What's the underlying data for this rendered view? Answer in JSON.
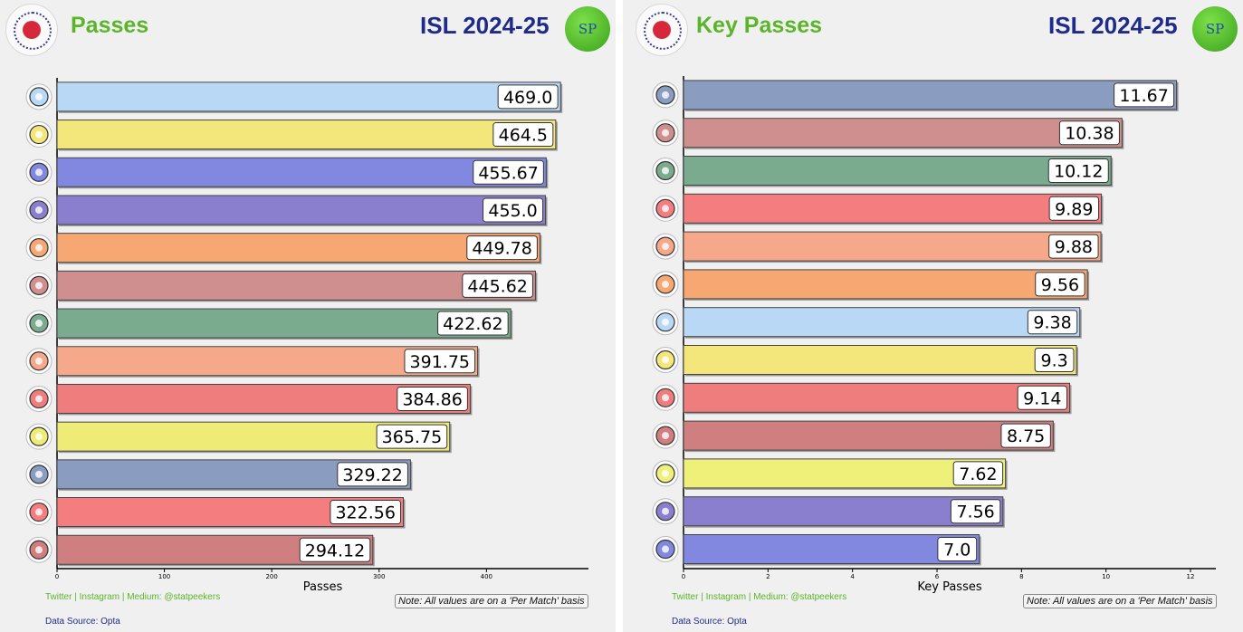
{
  "panels": [
    {
      "title": "Passes",
      "season": "ISL 2024-25",
      "badge": "SP",
      "footer_social": "Twitter | Instagram | Medium: @statpeekers",
      "footer_source": "Data Source: Opta",
      "note": "Note: All values are on a 'Per Match' basis"
    },
    {
      "title": "Key Passes",
      "season": "ISL 2024-25",
      "badge": "SP",
      "footer_social": "Twitter | Instagram | Medium: @statpeekers",
      "footer_source": "Data Source: Opta",
      "note": "Note: All values are on a 'Per Match' basis"
    }
  ],
  "chart_data": [
    {
      "type": "bar",
      "orientation": "horizontal",
      "xlabel": "Passes",
      "xlim": [
        0,
        495
      ],
      "xticks": [
        0,
        100,
        200,
        300,
        400
      ],
      "values": [
        469.0,
        464.5,
        455.67,
        455.0,
        449.78,
        445.62,
        422.62,
        391.75,
        384.86,
        365.75,
        329.22,
        322.56,
        294.12
      ],
      "value_labels": [
        "469.0",
        "464.5",
        "455.67",
        "455.0",
        "449.78",
        "445.62",
        "422.62",
        "391.75",
        "384.86",
        "365.75",
        "329.22",
        "322.56",
        "294.12"
      ],
      "colors": [
        "#b8d8f5",
        "#f3e77c",
        "#8288df",
        "#8a7fce",
        "#f6a772",
        "#cf8f8f",
        "#7aab8e",
        "#f5a98a",
        "#f07d7d",
        "#eeec76",
        "#8a9cc0",
        "#f47d80",
        "#cf7f7f"
      ],
      "icons": [
        "mumbai-city-crest-icon",
        "kerala-blasters-crest-icon",
        "bengaluru-fc-crest-icon",
        "odisha-fc-crest-icon",
        "fc-goa-crest-icon",
        "mohun-bagan-crest-icon",
        "mohammedan-sc-crest-icon",
        "punjab-fc-crest-icon",
        "east-bengal-crest-icon",
        "hyderabad-fc-crest-icon",
        "chennaiyin-fc-crest-icon",
        "northeast-united-crest-icon",
        "jamshedpur-fc-crest-icon"
      ]
    },
    {
      "type": "bar",
      "orientation": "horizontal",
      "xlabel": "Key Passes",
      "xlim": [
        0,
        12.6
      ],
      "xticks": [
        0,
        2,
        4,
        6,
        8,
        10,
        12
      ],
      "values": [
        11.67,
        10.38,
        10.12,
        9.89,
        9.88,
        9.56,
        9.38,
        9.3,
        9.14,
        8.75,
        7.62,
        7.56,
        7.0
      ],
      "value_labels": [
        "11.67",
        "10.38",
        "10.12",
        "9.89",
        "9.88",
        "9.56",
        "9.38",
        "9.3",
        "9.14",
        "8.75",
        "7.62",
        "7.56",
        "7.0"
      ],
      "colors": [
        "#8a9cc0",
        "#cf8f8f",
        "#7aab8e",
        "#f47d80",
        "#f5a98a",
        "#f6a772",
        "#b8d8f5",
        "#f3e77c",
        "#f07d7d",
        "#cf7f7f",
        "#eef07a",
        "#8a7fce",
        "#8288df"
      ],
      "icons": [
        "chennaiyin-fc-crest-icon",
        "mohun-bagan-crest-icon",
        "mohammedan-sc-crest-icon",
        "northeast-united-crest-icon",
        "punjab-fc-crest-icon",
        "fc-goa-crest-icon",
        "mumbai-city-crest-icon",
        "kerala-blasters-crest-icon",
        "east-bengal-crest-icon",
        "jamshedpur-fc-crest-icon",
        "hyderabad-fc-crest-icon",
        "odisha-fc-crest-icon",
        "bengaluru-fc-crest-icon"
      ]
    }
  ]
}
